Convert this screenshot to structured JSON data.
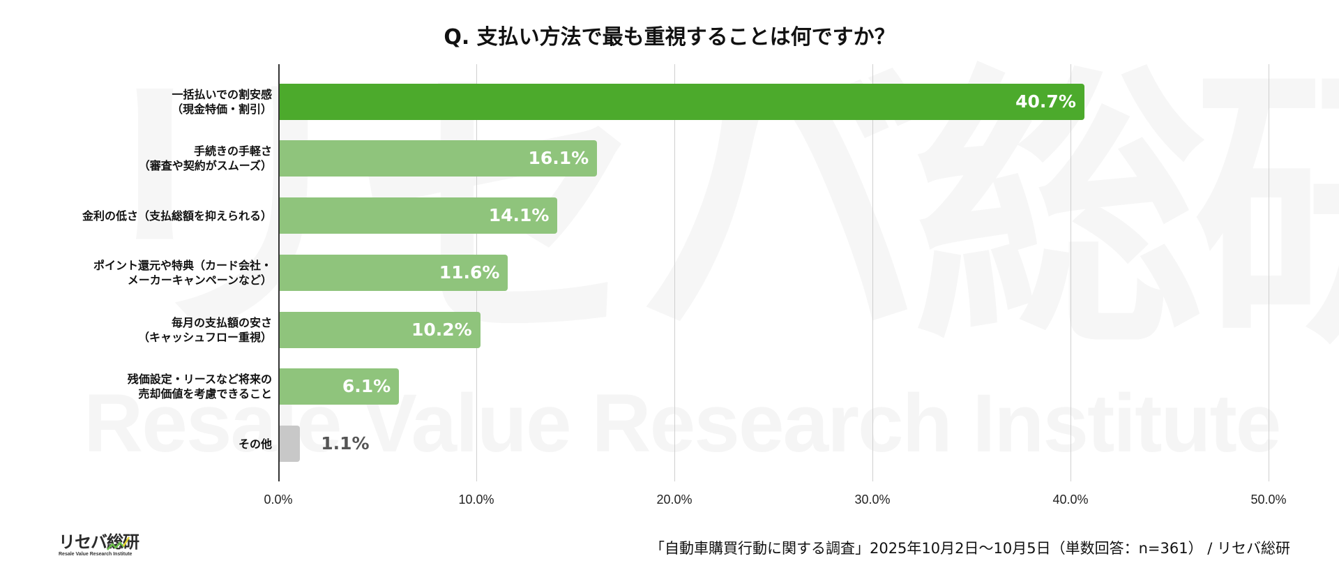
{
  "chart_data": {
    "type": "bar",
    "orientation": "horizontal",
    "title": "Q. 支払い方法で最も重視することは何ですか？",
    "categories": [
      "一括払いでの割安感（現金特価・割引）",
      "手続きの手軽さ（審査や契約がスムーズ）",
      "金利の低さ（支払総額を抑えられる）",
      "ポイント還元や特典（カード会社・メーカーキャンペーンなど）",
      "毎月の支払額の安さ（キャッシュフロー重視）",
      "残価設定・リースなど将来の売却価値を考慮できること",
      "その他"
    ],
    "values": [
      40.7,
      16.1,
      14.1,
      11.6,
      10.2,
      6.1,
      1.1
    ],
    "value_labels": [
      "40.7%",
      "16.1%",
      "14.1%",
      "11.6%",
      "10.2%",
      "6.1%",
      "1.1%"
    ],
    "xlabel": "",
    "ylabel": "",
    "xlim": [
      0,
      50
    ],
    "xticks": [
      "0.0%",
      "10.0%",
      "20.0%",
      "30.0%",
      "40.0%",
      "50.0%"
    ],
    "grid": true,
    "legend": null,
    "colors": [
      "#4caa2c",
      "#8fc47c",
      "#8fc47c",
      "#8fc47c",
      "#8fc47c",
      "#8fc47c",
      "#c8c8c8"
    ]
  },
  "title": "Q. 支払い方法で最も重視することは何ですか？",
  "bars": [
    {
      "label_lines": [
        "一括払いでの割安感",
        "（現金特価・割引）"
      ],
      "value": 40.7,
      "value_label": "40.7%",
      "color": "#4caa2c",
      "label_inside": true
    },
    {
      "label_lines": [
        "手続きの手軽さ",
        "（審査や契約がスムーズ）"
      ],
      "value": 16.1,
      "value_label": "16.1%",
      "color": "#8fc47c",
      "label_inside": true
    },
    {
      "label_lines": [
        "金利の低さ（支払総額を抑えられる）"
      ],
      "value": 14.1,
      "value_label": "14.1%",
      "color": "#8fc47c",
      "label_inside": true
    },
    {
      "label_lines": [
        "ポイント還元や特典（カード会社・",
        "メーカーキャンペーンなど）"
      ],
      "value": 11.6,
      "value_label": "11.6%",
      "color": "#8fc47c",
      "label_inside": true
    },
    {
      "label_lines": [
        "毎月の支払額の安さ",
        "（キャッシュフロー重視）"
      ],
      "value": 10.2,
      "value_label": "10.2%",
      "color": "#8fc47c",
      "label_inside": true
    },
    {
      "label_lines": [
        "残価設定・リースなど将来の",
        "売却価値を考慮できること"
      ],
      "value": 6.1,
      "value_label": "6.1%",
      "color": "#8fc47c",
      "label_inside": true
    },
    {
      "label_lines": [
        "その他"
      ],
      "value": 1.1,
      "value_label": "1.1%",
      "color": "#c8c8c8",
      "label_inside": false
    }
  ],
  "axis": {
    "ticks": [
      {
        "value": 0,
        "label": "0.0%"
      },
      {
        "value": 10,
        "label": "10.0%"
      },
      {
        "value": 20,
        "label": "20.0%"
      },
      {
        "value": 30,
        "label": "30.0%"
      },
      {
        "value": 40,
        "label": "40.0%"
      },
      {
        "value": 50,
        "label": "50.0%"
      }
    ]
  },
  "watermark": {
    "jp": "リセバ総研",
    "en": "Resale Value Research Institute"
  },
  "footer": {
    "logo_jp": "リセバ総研",
    "logo_en": "Resale Value Research Institute",
    "source": "「自動車購買行動に関する調査」2025年10月2日〜10月5日（単数回答：n=361） / リセバ総研"
  }
}
